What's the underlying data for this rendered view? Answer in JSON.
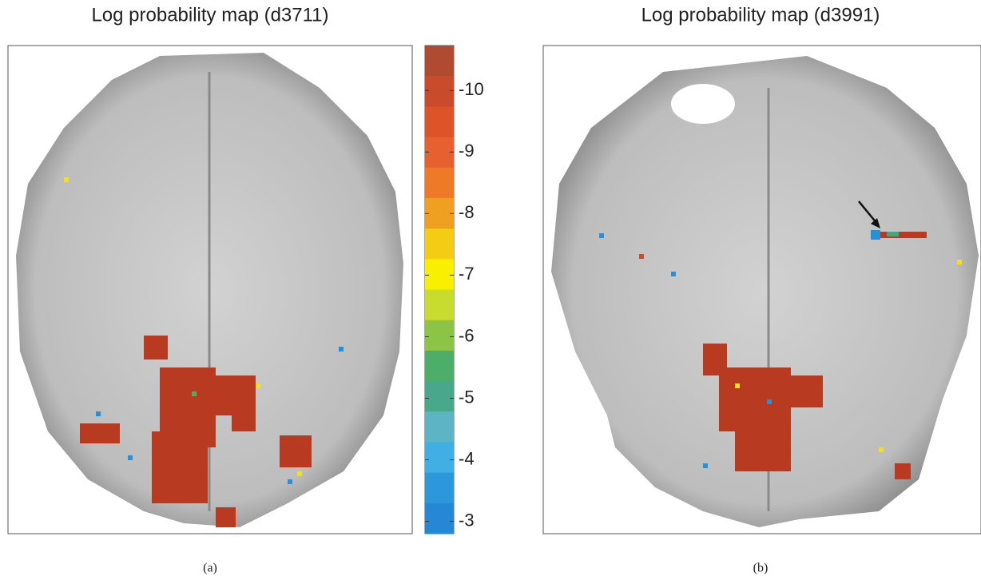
{
  "panels": [
    {
      "title": "Log probability map (d3711)",
      "caption": "(a)"
    },
    {
      "title": "Log probability map (d3991)",
      "caption": "(b)"
    }
  ],
  "colorbar": {
    "lim": [
      -10.73,
      -2.8
    ],
    "ticks": [
      -10,
      -9,
      -8,
      -7,
      -6,
      -5,
      -4,
      -3
    ],
    "colors": [
      "#b04a30",
      "#c84c2c",
      "#dc5428",
      "#e66030",
      "#ee7a28",
      "#f0a020",
      "#f4cc14",
      "#f8f000",
      "#c8dc30",
      "#8cc448",
      "#4cae68",
      "#48a88c",
      "#5cb4c4",
      "#40b0e4",
      "#2c98dc",
      "#2488d4"
    ]
  }
}
